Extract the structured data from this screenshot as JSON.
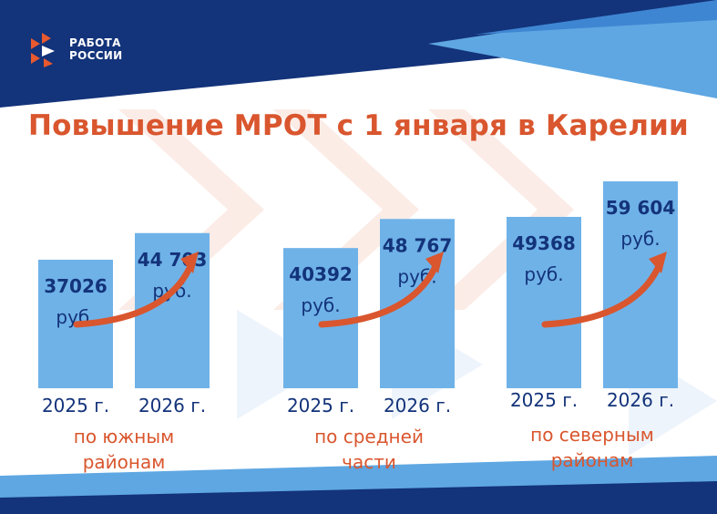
{
  "logo": {
    "line1": "РАБОТА",
    "line2": "РОССИИ"
  },
  "title": "Повышение МРОТ с 1 января в Карелии",
  "colors": {
    "navy": "#13337a",
    "bar": "#6fb2e8",
    "accent": "#d9562e",
    "header_light": "#5ea7e2"
  },
  "chart_data": {
    "type": "bar",
    "title": "Повышение МРОТ с 1 января в Карелии",
    "unit": "руб.",
    "groups": [
      {
        "region": [
          "по южным",
          "районам"
        ],
        "bars": [
          {
            "year": "2025 г.",
            "value": 37026,
            "label": "37026"
          },
          {
            "year": "2026 г.",
            "value": 44703,
            "label": "44 703"
          }
        ]
      },
      {
        "region": [
          "по средней",
          "части"
        ],
        "bars": [
          {
            "year": "2025 г.",
            "value": 40392,
            "label": "40392"
          },
          {
            "year": "2026 г.",
            "value": 48767,
            "label": "48 767"
          }
        ]
      },
      {
        "region": [
          "по северным",
          "районам"
        ],
        "bars": [
          {
            "year": "2025 г.",
            "value": 49368,
            "label": "49368"
          },
          {
            "year": "2026 г.",
            "value": 59604,
            "label": "59 604"
          }
        ]
      }
    ]
  }
}
